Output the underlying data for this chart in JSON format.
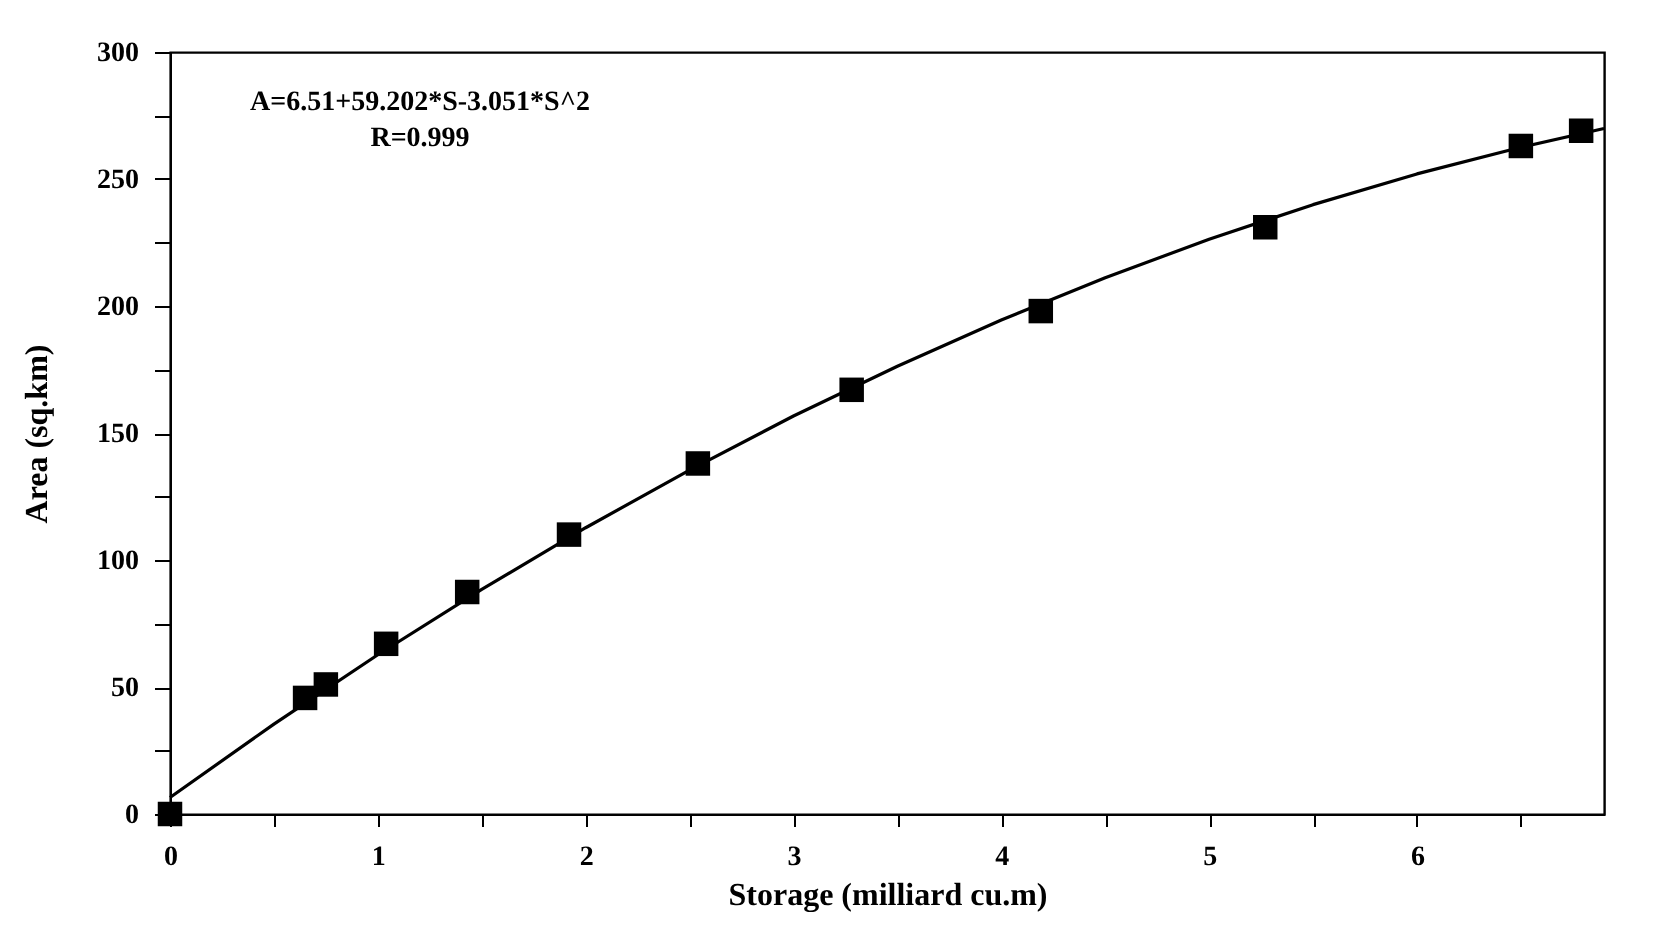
{
  "chart_data": {
    "type": "scatter",
    "xlabel": "Storage (milliard cu.m)",
    "ylabel": "Area (sq.km)",
    "annotations": [
      "A=6.51+59.202*S-3.051*S^2",
      "R=0.999"
    ],
    "xlim": [
      0,
      6.9
    ],
    "ylim": [
      0,
      300
    ],
    "xticks": [
      0,
      {
        "value": 0.5,
        "label": null
      },
      1,
      {
        "value": 1.5,
        "label": null
      },
      2,
      {
        "value": 2.5,
        "label": null
      },
      3,
      {
        "value": 3.5,
        "label": null
      },
      4,
      {
        "value": 4.5,
        "label": null
      },
      5,
      {
        "value": 5.5,
        "label": null
      },
      6,
      {
        "value": 6.5,
        "label": null
      }
    ],
    "yticks": [
      0,
      {
        "value": 25,
        "label": null
      },
      50,
      {
        "value": 75,
        "label": null
      },
      100,
      {
        "value": 125,
        "label": null
      },
      150,
      {
        "value": 175,
        "label": null
      },
      200,
      {
        "value": 225,
        "label": null
      },
      250,
      {
        "value": 275,
        "label": null
      },
      300
    ],
    "grid": false,
    "marker": "square",
    "series": [
      {
        "type": "line",
        "color": "#000000",
        "line_style": "solid",
        "marker": "none",
        "x": [
          0,
          0.5,
          1,
          1.5,
          2,
          2.5,
          3,
          3.5,
          4,
          4.5,
          5,
          5.5,
          6,
          6.5,
          6.9
        ],
        "values": [
          6.5,
          35.4,
          62.7,
          88.4,
          112.7,
          135.4,
          156.7,
          176.3,
          194.5,
          211.1,
          226.3,
          239.9,
          252.0,
          262.5,
          269.9
        ]
      },
      {
        "type": "scatter",
        "color": "#000000",
        "x": [
          0,
          0.65,
          0.75,
          1.04,
          1.43,
          1.92,
          2.54,
          3.28,
          4.19,
          5.27,
          6.5,
          6.79
        ],
        "values": [
          0,
          45.7,
          51,
          67,
          87.4,
          110,
          138,
          167,
          198,
          231,
          263,
          269
        ]
      }
    ]
  }
}
